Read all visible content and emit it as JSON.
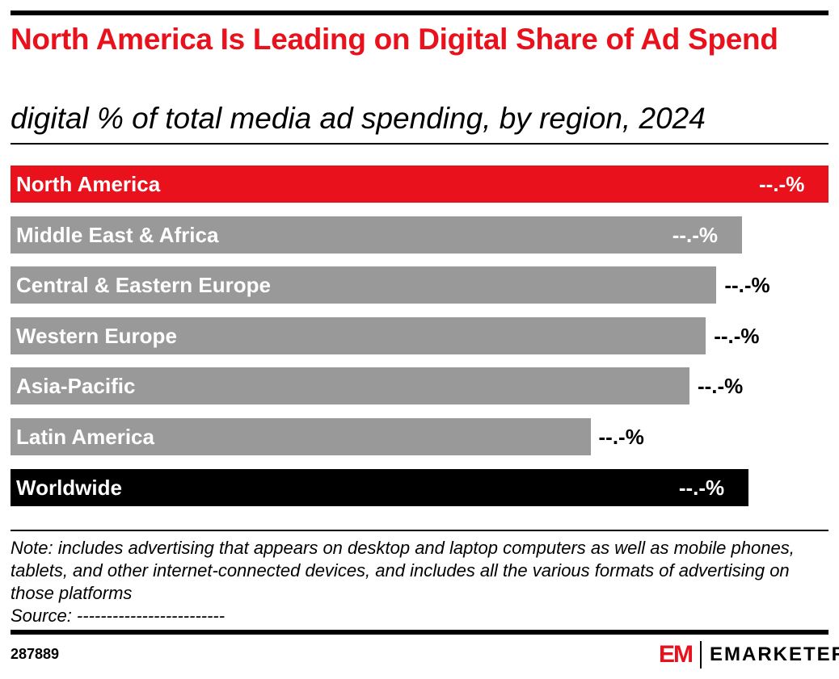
{
  "chart_data": {
    "type": "bar",
    "orientation": "horizontal",
    "title": "North America Is Leading on Digital Share of Ad Spend",
    "subtitle": "digital % of total media ad spending, by region, 2024",
    "categories": [
      "North America",
      "Middle East & Africa",
      "Central & Eastern Europe",
      "Western Europe",
      "Asia-Pacific",
      "Latin America",
      "Worldwide"
    ],
    "values": [
      100,
      89.4,
      86.3,
      85.0,
      83.0,
      70.9,
      90.2
    ],
    "data_labels": [
      "--.-%",
      "--.-%",
      "--.-%",
      "--.-%",
      "--.-%",
      "--.-%",
      "--.-%"
    ],
    "colors": [
      "#e8111c",
      "#999999",
      "#999999",
      "#999999",
      "#999999",
      "#999999",
      "#000000"
    ],
    "grid": false,
    "legend": "none"
  },
  "footer": {
    "note": "Note: includes advertising that appears on desktop and laptop computers as well as mobile phones, tablets, and other internet-connected devices, and includes all the various formats of advertising on those platforms",
    "source": "Source: -------------------------",
    "chart_id": "287889",
    "logo_mark": "EM",
    "logo_text": "EMARKETER"
  }
}
